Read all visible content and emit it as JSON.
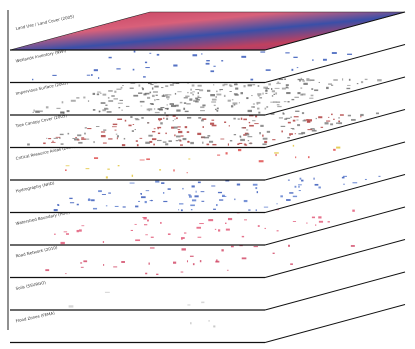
{
  "layers": [
    {
      "label": "Land Use / Land Cover (2005)"
    },
    {
      "label": "Wetlands Inventory (NWI)"
    },
    {
      "label": "Impervious Surface (2005)"
    },
    {
      "label": "Tree Canopy Cover (2005)"
    },
    {
      "label": "Critical Resource Areas (2009)"
    },
    {
      "label": "Hydrography (NHD)"
    },
    {
      "label": "Watershed Boundary (HUC)"
    },
    {
      "label": "Road Network (2010)"
    },
    {
      "label": "Soils (SSURGO)"
    },
    {
      "label": "Flood Zones (FEMA)"
    }
  ]
}
